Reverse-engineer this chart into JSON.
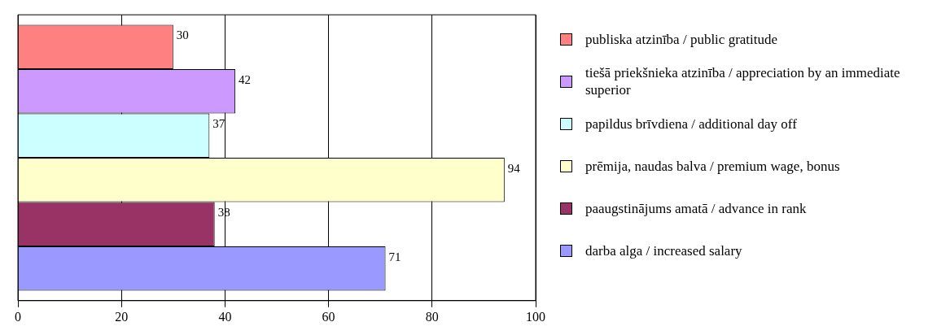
{
  "chart_data": {
    "type": "bar",
    "orientation": "horizontal",
    "categories": [
      null
    ],
    "series": [
      {
        "name": "publiska atzinība / public gratitude",
        "color": "#ff8080",
        "values": [
          30
        ]
      },
      {
        "name": "tiešā priekšnieka atzinība / appreciation by an immediate superior",
        "color": "#cc99ff",
        "values": [
          42
        ]
      },
      {
        "name": "papildus brīvdiena / additional day off",
        "color": "#ccffff",
        "values": [
          37
        ]
      },
      {
        "name": "prēmija, naudas balva / premium wage, bonus",
        "color": "#ffffcc",
        "values": [
          94
        ]
      },
      {
        "name": "paaugstinājums amatā / advance in rank",
        "color": "#993366",
        "values": [
          38
        ]
      },
      {
        "name": "darba alga / increased salary",
        "color": "#9999ff",
        "values": [
          71
        ]
      }
    ],
    "xlim": [
      0,
      100
    ],
    "xticks": [
      0,
      20,
      40,
      60,
      80,
      100
    ],
    "grid": "x",
    "legend": "right",
    "data_labels": true
  }
}
